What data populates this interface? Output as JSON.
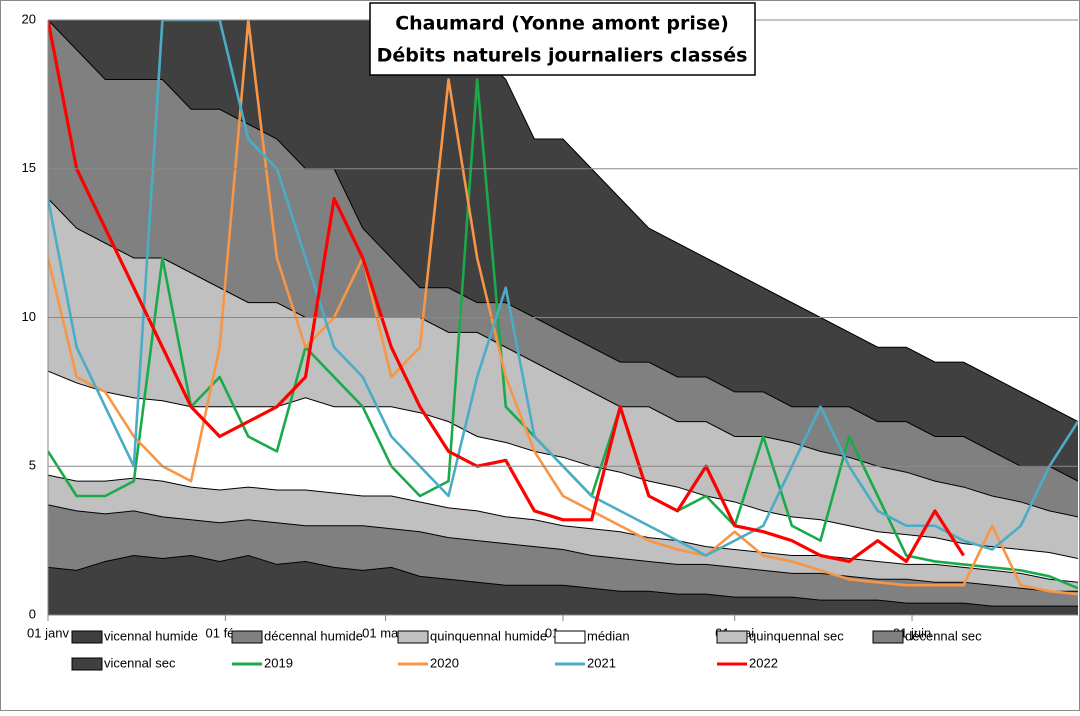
{
  "chart_data": {
    "type": "line",
    "title": [
      "Chaumard (Yonne amont prise)",
      "Débits naturels journaliers classés"
    ],
    "x": [
      0,
      5,
      10,
      15,
      20,
      25,
      30,
      35,
      40,
      45,
      50,
      55,
      60,
      65,
      70,
      75,
      80,
      85,
      90,
      95,
      100,
      105,
      110,
      115,
      120,
      125,
      130,
      135,
      140,
      145,
      150,
      155,
      160,
      165,
      170,
      175,
      180
    ],
    "xlim": [
      0,
      180
    ],
    "xticks": [
      {
        "value": 0,
        "label": "01 janv"
      },
      {
        "value": 31,
        "label": "01 févr"
      },
      {
        "value": 59,
        "label": "01 mars"
      },
      {
        "value": 90,
        "label": "01 avr"
      },
      {
        "value": 120,
        "label": "01 mai"
      },
      {
        "value": 151,
        "label": "01 juin"
      }
    ],
    "ylim": [
      0,
      20
    ],
    "yticks": [
      0,
      5,
      10,
      15,
      20
    ],
    "grid": true,
    "series": [
      {
        "name": "vicennal humide",
        "color": "#404040",
        "area": true,
        "values": [
          21,
          21,
          21,
          21,
          21,
          21,
          21,
          21,
          21,
          21,
          21,
          21,
          21,
          21,
          21,
          19,
          18,
          16,
          16,
          15,
          14,
          13,
          12.5,
          12,
          11.5,
          11,
          10.5,
          10,
          9.5,
          9,
          9,
          8.5,
          8.5,
          8,
          7.5,
          7,
          6.5
        ]
      },
      {
        "name": "décennal humide",
        "color": "#808080",
        "area": true,
        "values": [
          20,
          19,
          18,
          18,
          18,
          17,
          17,
          16.5,
          16,
          15,
          15,
          13,
          12,
          11,
          11,
          10.5,
          10.5,
          10,
          9.5,
          9,
          8.5,
          8.5,
          8,
          8,
          7.5,
          7.5,
          7,
          7,
          7,
          6.5,
          6.5,
          6,
          6,
          5.5,
          5,
          5,
          4.5
        ]
      },
      {
        "name": "quinquennal humide",
        "color": "#c0c0c0",
        "area": true,
        "values": [
          14,
          13,
          12.5,
          12,
          12,
          11.5,
          11,
          10.5,
          10.5,
          10,
          10,
          10,
          10,
          10,
          9.5,
          9.5,
          9,
          8.5,
          8,
          7.5,
          7,
          7,
          6.5,
          6.5,
          6,
          6,
          5.8,
          5.5,
          5.3,
          5,
          4.8,
          4.5,
          4.3,
          4,
          3.8,
          3.5,
          3.3
        ]
      },
      {
        "name": "médian",
        "color": "#ffffff",
        "area": true,
        "values": [
          8.2,
          7.8,
          7.5,
          7.3,
          7.2,
          7,
          7,
          7,
          7,
          7.3,
          7,
          7,
          7,
          6.8,
          6.5,
          6,
          5.8,
          5.5,
          5.3,
          5,
          4.8,
          4.5,
          4.3,
          4,
          3.8,
          3.5,
          3.3,
          3.2,
          3,
          2.8,
          2.7,
          2.6,
          2.4,
          2.3,
          2.2,
          2.1,
          1.9
        ]
      },
      {
        "name": "quinquennal sec",
        "color": "#c0c0c0",
        "area": true,
        "values": [
          4.7,
          4.5,
          4.5,
          4.6,
          4.5,
          4.3,
          4.2,
          4.3,
          4.2,
          4.2,
          4.1,
          4,
          4,
          3.8,
          3.6,
          3.5,
          3.3,
          3.2,
          3,
          2.9,
          2.8,
          2.6,
          2.5,
          2.3,
          2.2,
          2.1,
          2,
          2,
          1.9,
          1.8,
          1.7,
          1.7,
          1.6,
          1.5,
          1.4,
          1.2,
          1.1
        ]
      },
      {
        "name": "décennal sec",
        "color": "#808080",
        "area": true,
        "values": [
          3.7,
          3.5,
          3.4,
          3.5,
          3.3,
          3.2,
          3.1,
          3.2,
          3.1,
          3,
          3,
          3,
          2.9,
          2.8,
          2.6,
          2.5,
          2.4,
          2.3,
          2.2,
          2,
          1.9,
          1.8,
          1.7,
          1.7,
          1.6,
          1.5,
          1.4,
          1.4,
          1.3,
          1.2,
          1.2,
          1.1,
          1.1,
          1,
          0.9,
          0.8,
          0.8
        ]
      },
      {
        "name": "vicennal sec",
        "color": "#404040",
        "area": true,
        "values": [
          1.6,
          1.5,
          1.8,
          2,
          1.9,
          2,
          1.8,
          2,
          1.7,
          1.8,
          1.6,
          1.5,
          1.6,
          1.3,
          1.2,
          1.1,
          1,
          1,
          1,
          0.9,
          0.8,
          0.8,
          0.7,
          0.7,
          0.6,
          0.6,
          0.6,
          0.5,
          0.5,
          0.5,
          0.4,
          0.4,
          0.4,
          0.3,
          0.3,
          0.3,
          0.3
        ]
      },
      {
        "name": "2019",
        "color": "#1aaa4a",
        "values": [
          5.5,
          4,
          4,
          4.5,
          12,
          7,
          8,
          6,
          5.5,
          9,
          8,
          7,
          5,
          4,
          4.5,
          18,
          7,
          6,
          5,
          4,
          7,
          4,
          3.5,
          4,
          3,
          6,
          3,
          2.5,
          6,
          4,
          2,
          1.8,
          1.7,
          1.6,
          1.5,
          1.3,
          0.9
        ]
      },
      {
        "name": "2020",
        "color": "#f79646",
        "values": [
          12,
          8,
          7.5,
          6,
          5,
          4.5,
          9,
          20,
          12,
          9,
          10,
          12,
          8,
          9,
          18,
          12,
          8,
          5.5,
          4,
          3.5,
          3,
          2.5,
          2.2,
          2,
          2.8,
          2,
          1.8,
          1.5,
          1.2,
          1.1,
          1,
          1,
          1,
          3,
          1,
          0.8,
          0.7
        ]
      },
      {
        "name": "2021",
        "color": "#4bacc6",
        "values": [
          14,
          9,
          7,
          5,
          20,
          20,
          20,
          16,
          15,
          12,
          9,
          8,
          6,
          5,
          4,
          8,
          11,
          6,
          5,
          4,
          3.5,
          3,
          2.5,
          2,
          2.5,
          3,
          5,
          7,
          5,
          3.5,
          3,
          3,
          2.5,
          2.2,
          3,
          5,
          6.5
        ]
      },
      {
        "name": "2022",
        "color": "#ff0000",
        "values": [
          20,
          15,
          13,
          11,
          9,
          7,
          6,
          6.5,
          7,
          8,
          14,
          12,
          9,
          7,
          5.5,
          5,
          5.2,
          3.5,
          3.2,
          3.2,
          7,
          4,
          3.5,
          5,
          3,
          2.8,
          2.5,
          2,
          1.8,
          2.5,
          1.8,
          3.5,
          2,
          null,
          null,
          null,
          null
        ]
      }
    ]
  }
}
